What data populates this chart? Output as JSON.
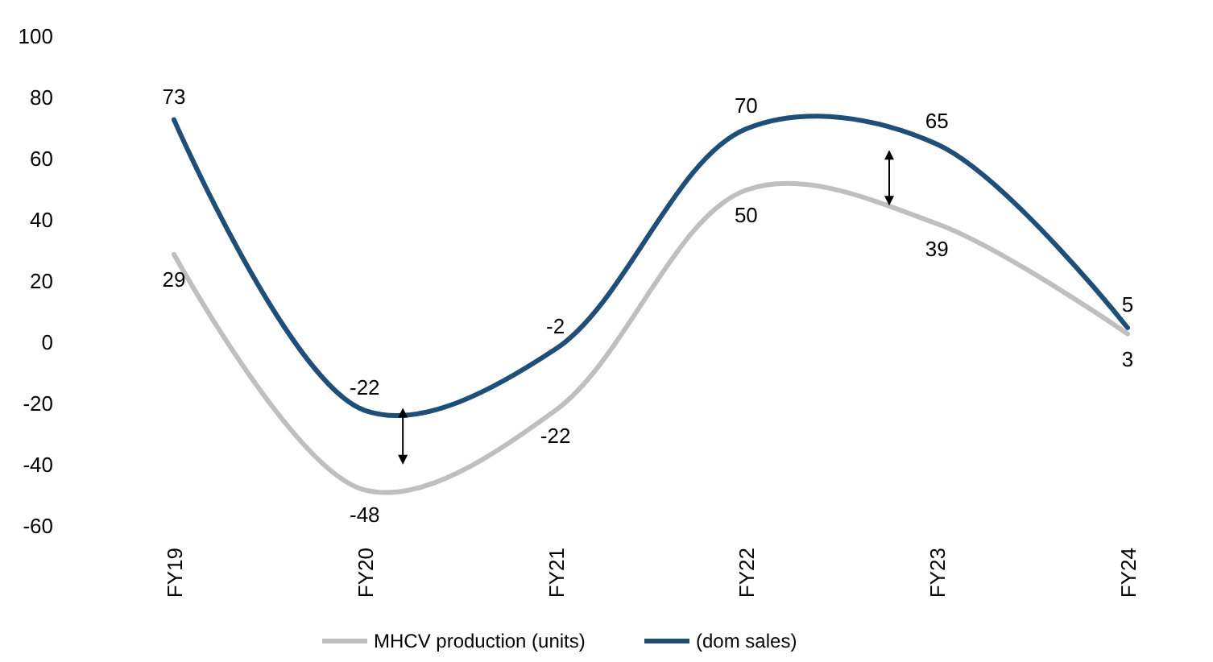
{
  "chart_data": {
    "type": "line",
    "categories": [
      "FY19",
      "FY20",
      "FY21",
      "FY22",
      "FY23",
      "FY24"
    ],
    "series": [
      {
        "name": "MHCV production (units)",
        "color": "#bfbfbf",
        "values": [
          29,
          -48,
          -22,
          50,
          39,
          3
        ]
      },
      {
        "name": "(dom sales)",
        "color": "#1f4e79",
        "values": [
          73,
          -22,
          -2,
          70,
          65,
          5
        ]
      }
    ],
    "ylim": [
      -60,
      100
    ],
    "yticks": [
      -60,
      -40,
      -20,
      0,
      20,
      40,
      60,
      80,
      100
    ],
    "grid": false,
    "legend": "bottom",
    "data_labels": true,
    "marker": "none",
    "line_style": "solid"
  }
}
